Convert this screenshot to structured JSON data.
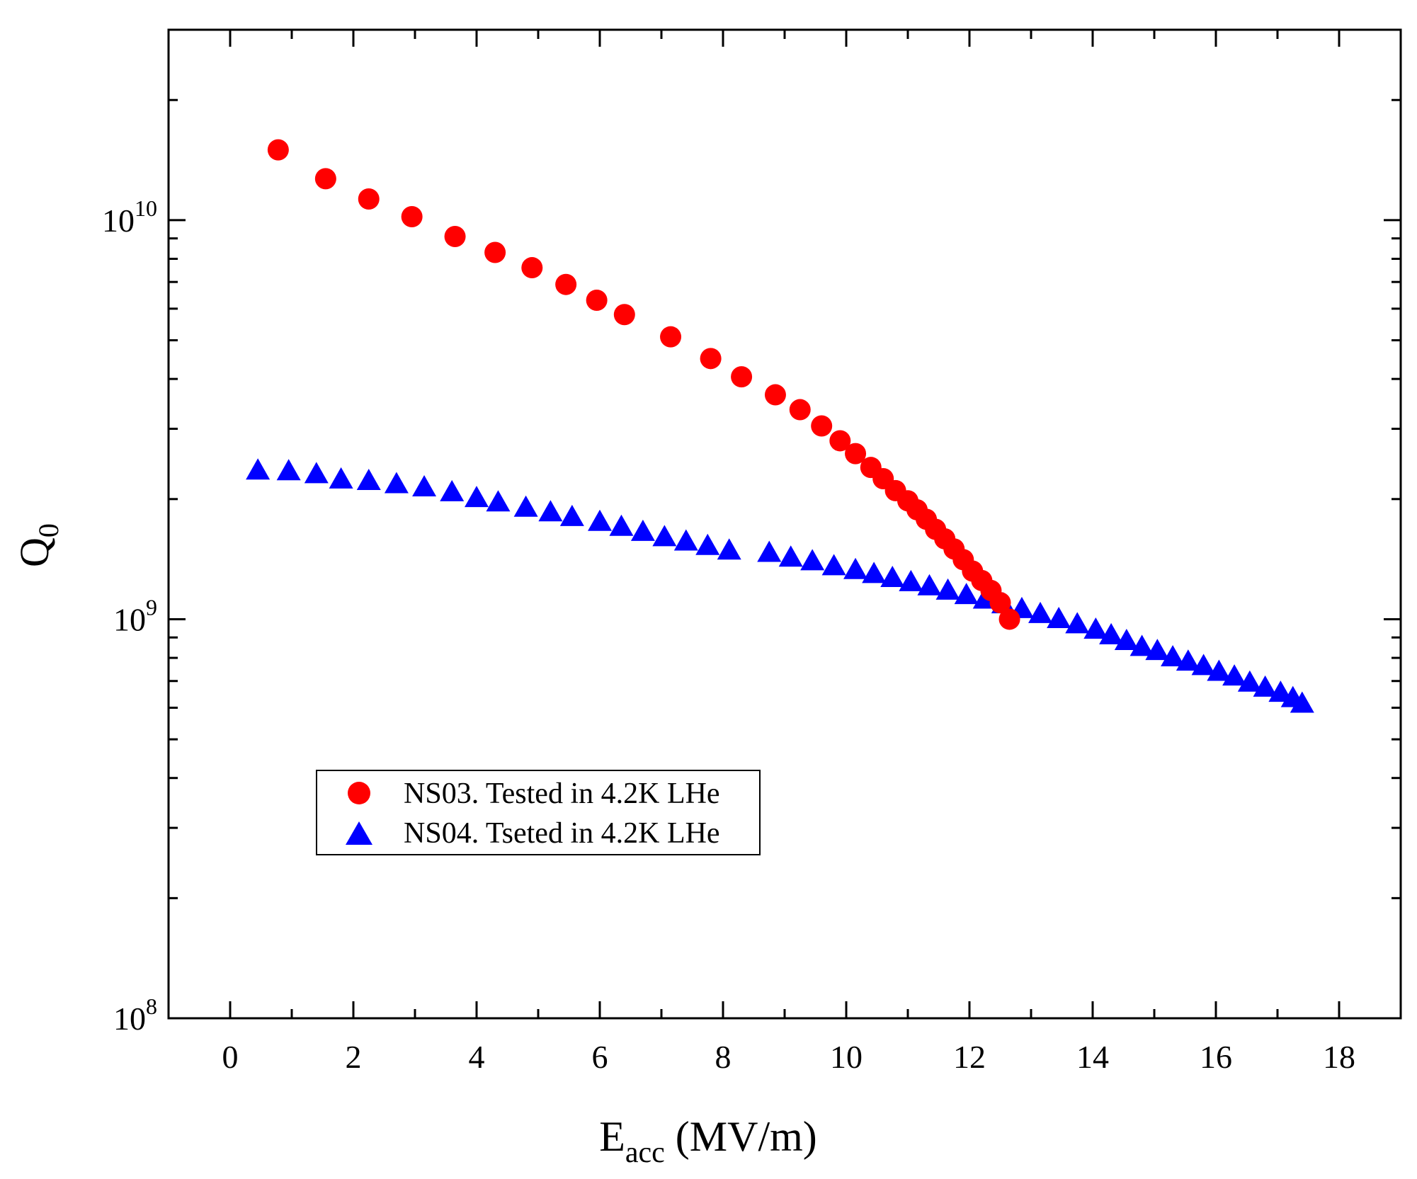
{
  "chart_data": {
    "type": "scatter",
    "xlabel": {
      "main": "E",
      "sub": "acc",
      "rest": " (MV/m)"
    },
    "ylabel": {
      "main": "Q",
      "sub": "0"
    },
    "xlim": [
      -1,
      19
    ],
    "ylim": [
      100000000.0,
      30000000000.0
    ],
    "yscale": "log",
    "x_ticks": [
      0,
      2,
      4,
      6,
      8,
      10,
      12,
      14,
      16,
      18
    ],
    "y_ticks": [
      {
        "value": 100000000.0,
        "base": "10",
        "exp": "8"
      },
      {
        "value": 1000000000.0,
        "base": "10",
        "exp": "9"
      },
      {
        "value": 10000000000.0,
        "base": "10",
        "exp": "10"
      }
    ],
    "grid": false,
    "legend_position": "bottom-left",
    "series": [
      {
        "name": "NS03. Tested in 4.2K LHe",
        "marker": "circle",
        "color": "#ff0000",
        "points": [
          [
            0.78,
            15000000000.0
          ],
          [
            1.55,
            12700000000.0
          ],
          [
            2.25,
            11300000000.0
          ],
          [
            2.95,
            10200000000.0
          ],
          [
            3.65,
            9100000000.0
          ],
          [
            4.3,
            8300000000.0
          ],
          [
            4.9,
            7600000000.0
          ],
          [
            5.45,
            6900000000.0
          ],
          [
            5.95,
            6300000000.0
          ],
          [
            6.4,
            5800000000.0
          ],
          [
            7.15,
            5100000000.0
          ],
          [
            7.8,
            4500000000.0
          ],
          [
            8.3,
            4050000000.0
          ],
          [
            8.85,
            3650000000.0
          ],
          [
            9.25,
            3350000000.0
          ],
          [
            9.6,
            3050000000.0
          ],
          [
            9.9,
            2800000000.0
          ],
          [
            10.15,
            2600000000.0
          ],
          [
            10.4,
            2400000000.0
          ],
          [
            10.6,
            2250000000.0
          ],
          [
            10.8,
            2100000000.0
          ],
          [
            11.0,
            1980000000.0
          ],
          [
            11.15,
            1880000000.0
          ],
          [
            11.3,
            1780000000.0
          ],
          [
            11.45,
            1680000000.0
          ],
          [
            11.6,
            1590000000.0
          ],
          [
            11.75,
            1500000000.0
          ],
          [
            11.9,
            1410000000.0
          ],
          [
            12.05,
            1320000000.0
          ],
          [
            12.2,
            1250000000.0
          ],
          [
            12.35,
            1180000000.0
          ],
          [
            12.5,
            1100000000.0
          ],
          [
            12.65,
            1000000000.0
          ]
        ]
      },
      {
        "name": "NS04. Tseted in 4.2K LHe",
        "marker": "triangle",
        "color": "#0000ff",
        "points": [
          [
            0.45,
            2380000000.0
          ],
          [
            0.95,
            2370000000.0
          ],
          [
            1.4,
            2330000000.0
          ],
          [
            1.8,
            2260000000.0
          ],
          [
            2.25,
            2240000000.0
          ],
          [
            2.7,
            2200000000.0
          ],
          [
            3.15,
            2160000000.0
          ],
          [
            3.6,
            2100000000.0
          ],
          [
            4.0,
            2030000000.0
          ],
          [
            4.35,
            1980000000.0
          ],
          [
            4.8,
            1920000000.0
          ],
          [
            5.2,
            1870000000.0
          ],
          [
            5.55,
            1820000000.0
          ],
          [
            6.0,
            1770000000.0
          ],
          [
            6.35,
            1720000000.0
          ],
          [
            6.7,
            1670000000.0
          ],
          [
            7.05,
            1620000000.0
          ],
          [
            7.4,
            1580000000.0
          ],
          [
            7.75,
            1540000000.0
          ],
          [
            8.1,
            1500000000.0
          ],
          [
            8.75,
            1480000000.0
          ],
          [
            9.1,
            1440000000.0
          ],
          [
            9.45,
            1410000000.0
          ],
          [
            9.8,
            1370000000.0
          ],
          [
            10.15,
            1340000000.0
          ],
          [
            10.45,
            1310000000.0
          ],
          [
            10.75,
            1280000000.0
          ],
          [
            11.05,
            1250000000.0
          ],
          [
            11.35,
            1220000000.0
          ],
          [
            11.65,
            1190000000.0
          ],
          [
            11.95,
            1160000000.0
          ],
          [
            12.25,
            1130000000.0
          ],
          [
            12.55,
            1100000000.0
          ],
          [
            12.85,
            1070000000.0
          ],
          [
            13.15,
            1040000000.0
          ],
          [
            13.45,
            1010000000.0
          ],
          [
            13.75,
            980000000.0
          ],
          [
            14.05,
            950000000.0
          ],
          [
            14.3,
            920000000.0
          ],
          [
            14.55,
            890000000.0
          ],
          [
            14.8,
            860000000.0
          ],
          [
            15.05,
            840000000.0
          ],
          [
            15.3,
            810000000.0
          ],
          [
            15.55,
            790000000.0
          ],
          [
            15.8,
            770000000.0
          ],
          [
            16.05,
            745000000.0
          ],
          [
            16.3,
            725000000.0
          ],
          [
            16.55,
            700000000.0
          ],
          [
            16.8,
            680000000.0
          ],
          [
            17.05,
            660000000.0
          ],
          [
            17.25,
            640000000.0
          ],
          [
            17.4,
            620000000.0
          ]
        ]
      }
    ]
  }
}
